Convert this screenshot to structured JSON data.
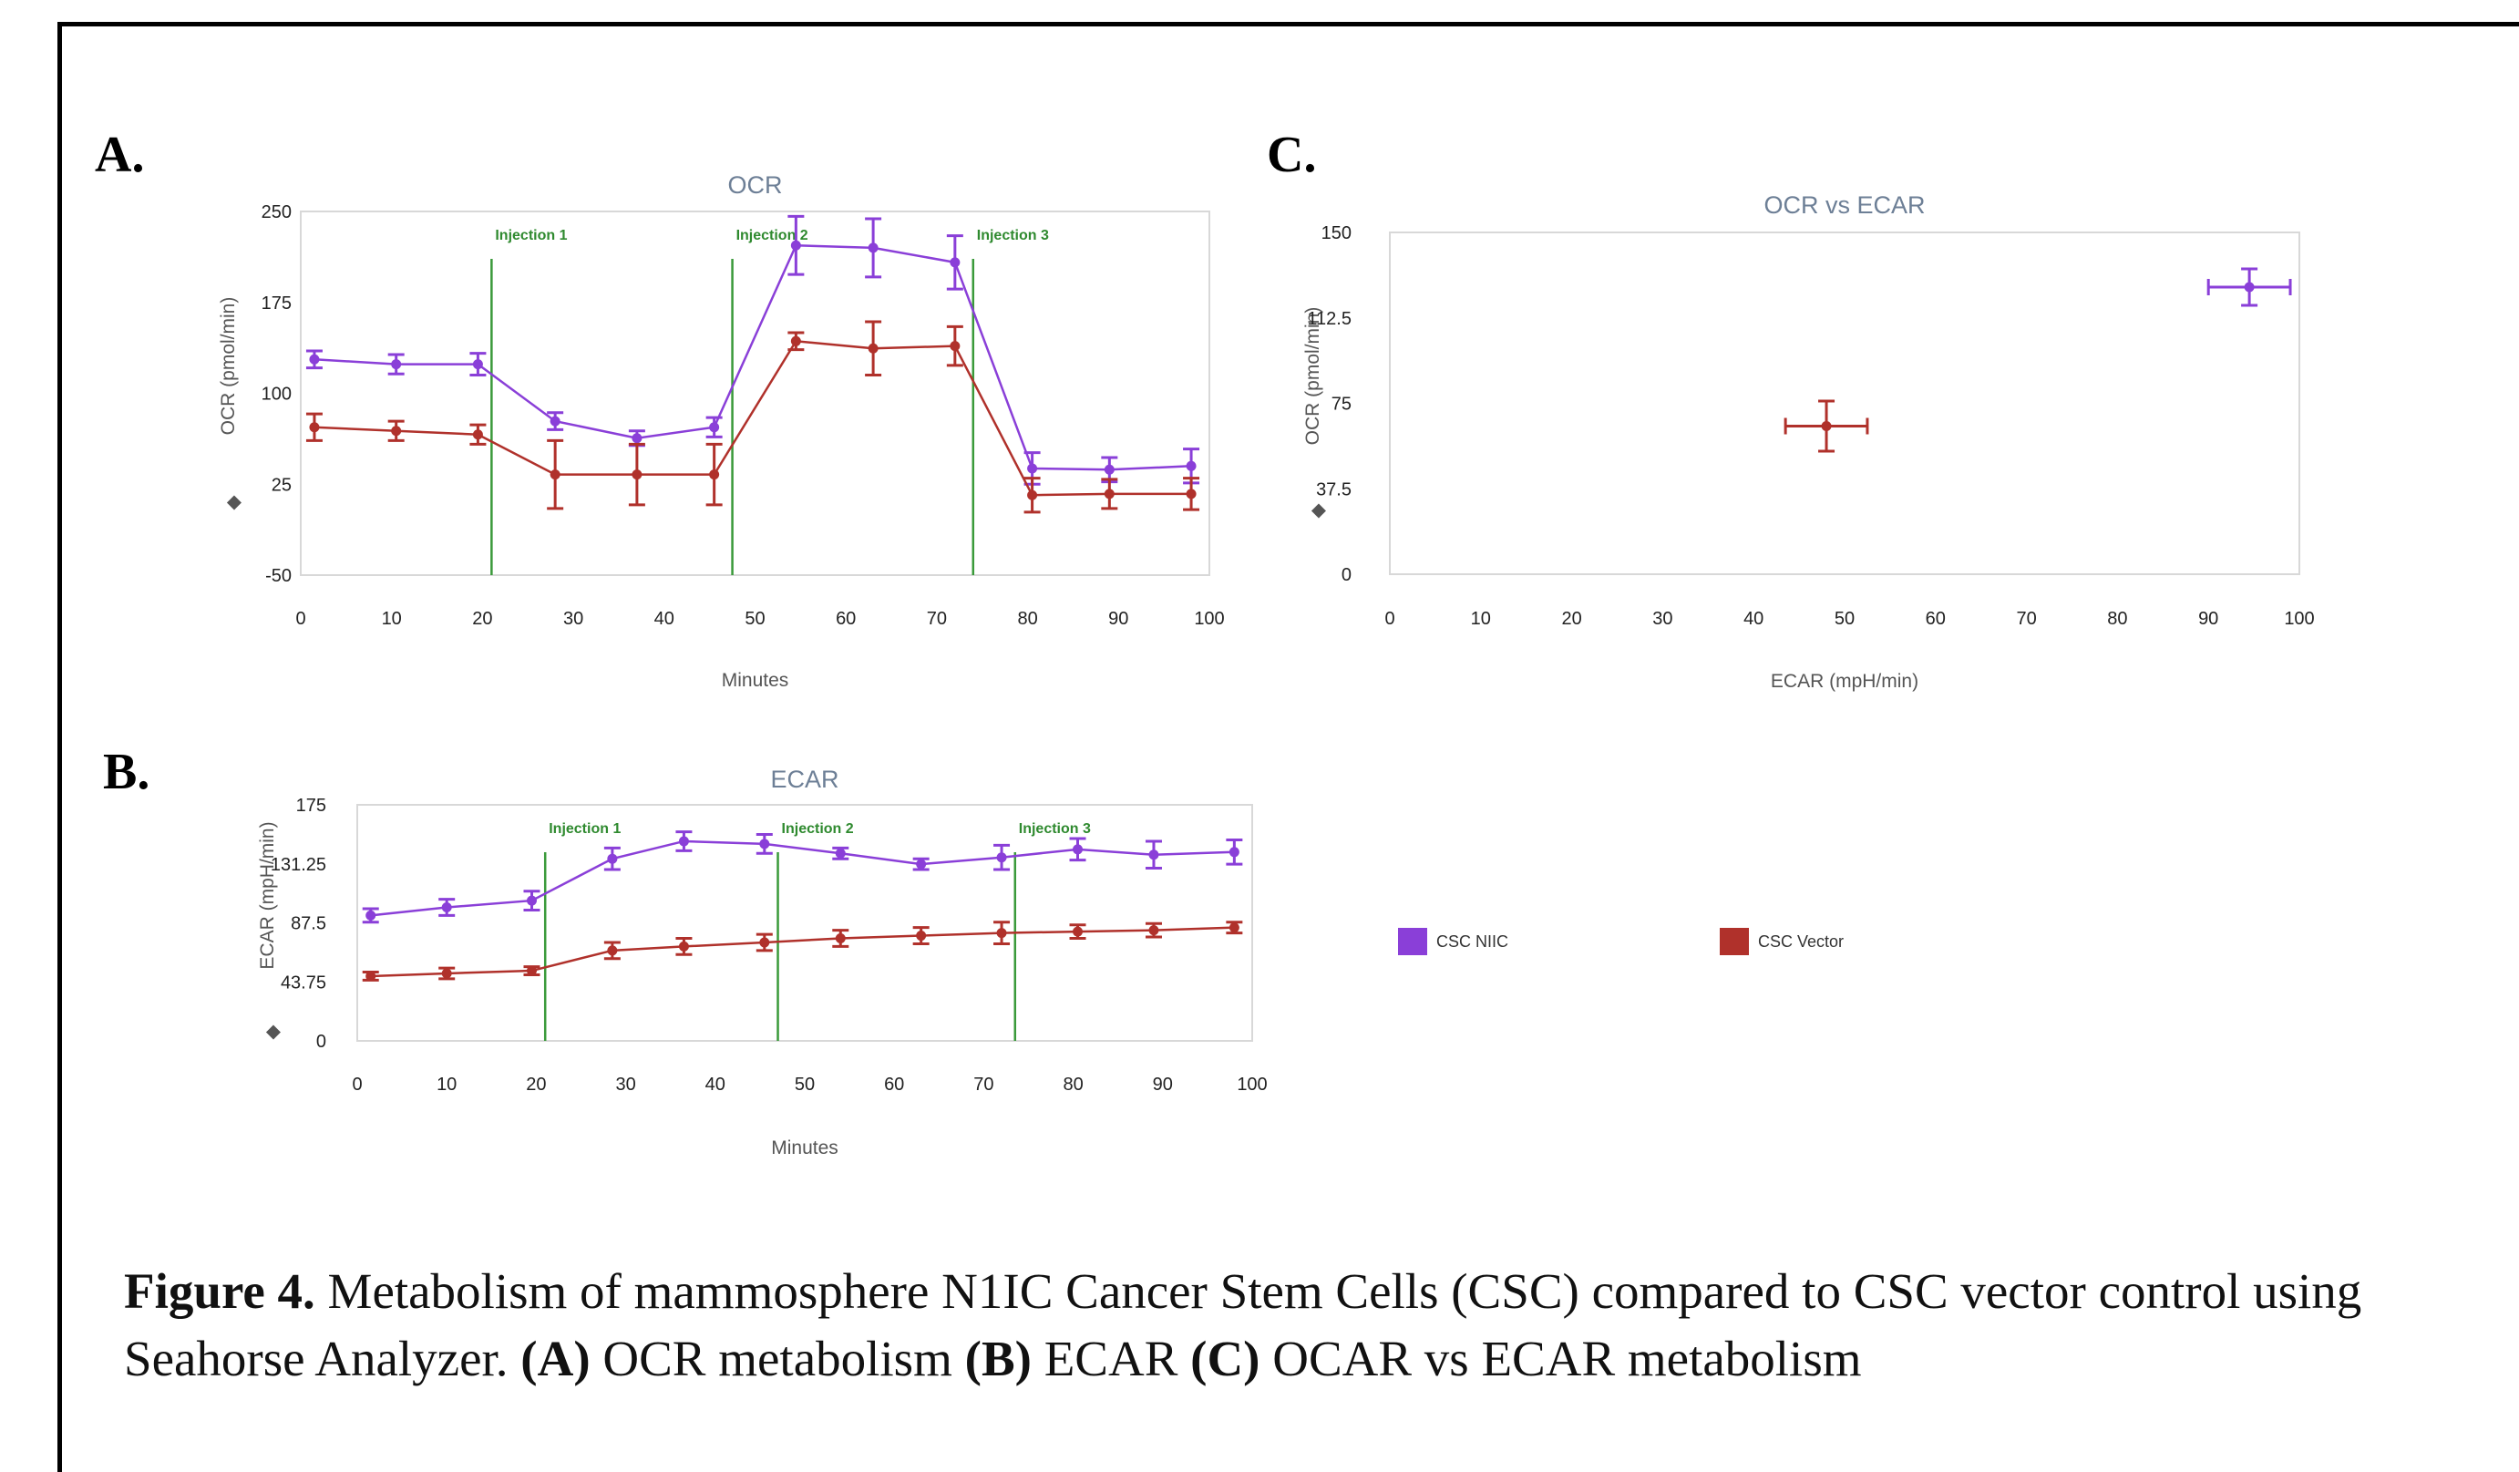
{
  "panels": {
    "a_label": "A.",
    "b_label": "B.",
    "c_label": "C."
  },
  "chart_data": [
    {
      "type": "line",
      "title": "OCR",
      "xlabel": "Minutes",
      "ylabel": "OCR (pmol/min)",
      "xlim": [
        0,
        100
      ],
      "ylim": [
        -50,
        250
      ],
      "xticks": [
        "0",
        "10",
        "20",
        "30",
        "40",
        "50",
        "60",
        "70",
        "80",
        "90",
        "100"
      ],
      "yticks": [
        "250",
        "175",
        "100",
        "25",
        "-50"
      ],
      "injections": [
        {
          "label": "Injection 1",
          "x": 21
        },
        {
          "label": "Injection 2",
          "x": 47.5
        },
        {
          "label": "Injection 3",
          "x": 74
        }
      ],
      "series": [
        {
          "name": "CSC NIIC",
          "color": "#8a3fd8",
          "x": [
            1.5,
            10.5,
            19.5,
            28,
            37,
            45.5,
            54.5,
            63,
            72,
            80.5,
            89,
            98
          ],
          "y": [
            128,
            124,
            124,
            77,
            63,
            72,
            222,
            220,
            208,
            38,
            37,
            40
          ],
          "err": [
            7,
            8,
            9,
            7,
            6,
            8,
            24,
            24,
            22,
            13,
            10,
            14
          ]
        },
        {
          "name": "CSC Vector",
          "color": "#b0312b",
          "x": [
            1.5,
            10.5,
            19.5,
            28,
            37,
            45.5,
            54.5,
            63,
            72,
            80.5,
            89,
            98
          ],
          "y": [
            72,
            69,
            66,
            33,
            33,
            33,
            143,
            137,
            139,
            16,
            17,
            17
          ],
          "err": [
            11,
            8,
            8,
            28,
            25,
            25,
            7,
            22,
            16,
            14,
            12,
            13
          ]
        }
      ]
    },
    {
      "type": "line",
      "title": "ECAR",
      "xlabel": "Minutes",
      "ylabel": "ECAR (mpH/min)",
      "xlim": [
        0,
        100
      ],
      "ylim": [
        0,
        175
      ],
      "xticks": [
        "0",
        "10",
        "20",
        "30",
        "40",
        "50",
        "60",
        "70",
        "80",
        "90",
        "100"
      ],
      "yticks": [
        "175",
        "131.25",
        "87.5",
        "43.75",
        "0"
      ],
      "injections": [
        {
          "label": "Injection 1",
          "x": 21
        },
        {
          "label": "Injection 2",
          "x": 47
        },
        {
          "label": "Injection 3",
          "x": 73.5
        }
      ],
      "series": [
        {
          "name": "CSC NIIC",
          "color": "#8a3fd8",
          "x": [
            1.5,
            10,
            19.5,
            28.5,
            36.5,
            45.5,
            54,
            63,
            72,
            80.5,
            89,
            98
          ],
          "y": [
            93,
            99,
            104,
            135,
            148,
            146,
            139,
            131,
            136,
            142,
            138,
            140
          ],
          "err": [
            5,
            6,
            7,
            8,
            7,
            7,
            4,
            4,
            9,
            8,
            10,
            9
          ]
        },
        {
          "name": "CSC Vector",
          "color": "#b0312b",
          "x": [
            1.5,
            10,
            19.5,
            28.5,
            36.5,
            45.5,
            54,
            63,
            72,
            80.5,
            89,
            98
          ],
          "y": [
            48,
            50,
            52,
            67,
            70,
            73,
            76,
            78,
            80,
            81,
            82,
            84
          ],
          "err": [
            3,
            4,
            3,
            6,
            6,
            6,
            6,
            6,
            8,
            5,
            5,
            4
          ]
        }
      ]
    },
    {
      "type": "scatter",
      "title": "OCR vs ECAR",
      "xlabel": "ECAR (mpH/min)",
      "ylabel": "OCR (pmol/min)",
      "xlim": [
        0,
        100
      ],
      "ylim": [
        0,
        150
      ],
      "xticks": [
        "0",
        "10",
        "20",
        "30",
        "40",
        "50",
        "60",
        "70",
        "80",
        "90",
        "100"
      ],
      "yticks": [
        "150",
        "112.5",
        "75",
        "37.5",
        "0"
      ],
      "series": [
        {
          "name": "CSC NIIC",
          "color": "#8a3fd8",
          "x": 94.5,
          "y": 126,
          "xerr": 4.5,
          "yerr": 8
        },
        {
          "name": "CSC Vector",
          "color": "#b0312b",
          "x": 48,
          "y": 65,
          "xerr": 4.5,
          "yerr": 11
        }
      ]
    }
  ],
  "legend": [
    {
      "label": "CSC NIIC",
      "color": "#8a3fd8"
    },
    {
      "label": "CSC Vector",
      "color": "#b0312b"
    }
  ],
  "caption": {
    "fig_label": "Figure 4.",
    "text1": " Metabolism of mammosphere N1IC Cancer Stem Cells (CSC) compared to CSC vector control using Seahorse Analyzer. ",
    "a": "(A)",
    "text2": " OCR metabolism ",
    "b": "(B)",
    "text3": " ECAR ",
    "c": "(C)",
    "text4": " OCAR vs ECAR metabolism"
  }
}
